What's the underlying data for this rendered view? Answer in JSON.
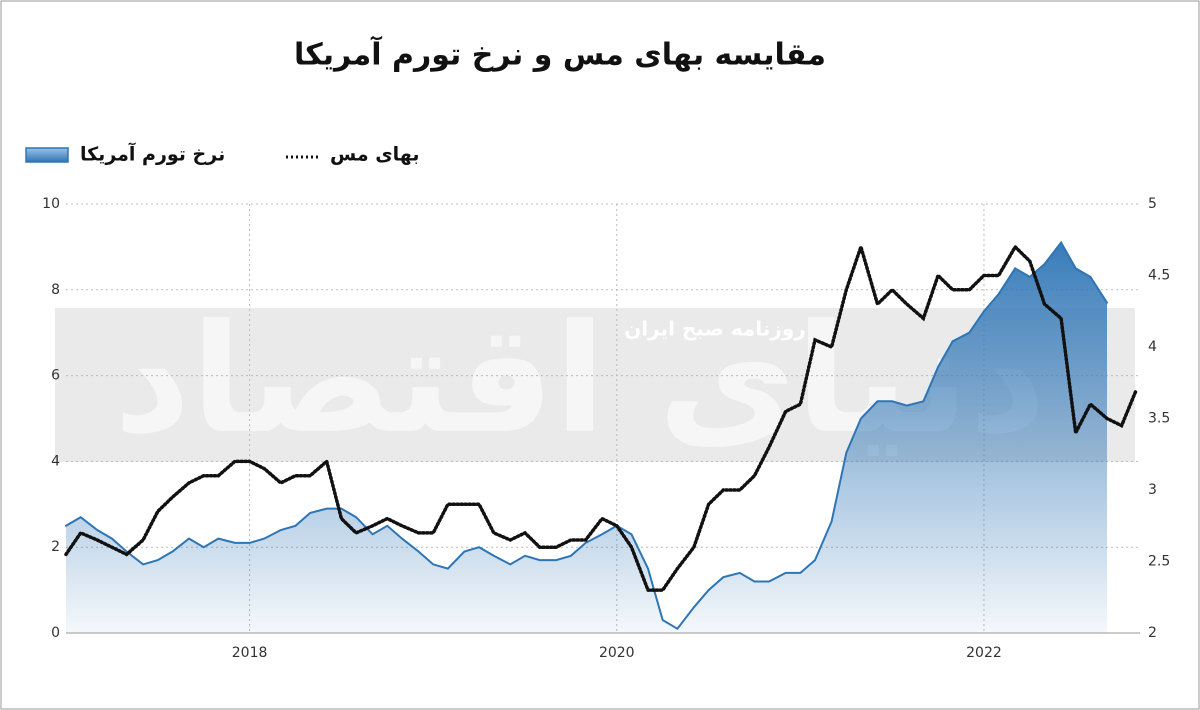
{
  "chart_data": {
    "type": "line",
    "title": "مقایسه بهای مس و نرخ تورم آمریکا",
    "watermark": "دنیای اقتصاد",
    "watermark_subtitle": "روزنامه صبح ایران",
    "xlim": [
      2017,
      2022.85
    ],
    "xticks": [
      2018,
      2020,
      2022
    ],
    "ylim": [
      0,
      10
    ],
    "yticks": [
      0,
      2,
      4,
      6,
      8,
      10
    ],
    "y2lim": [
      2,
      5
    ],
    "y2ticks": [
      2,
      2.5,
      3,
      3.5,
      4,
      4.5,
      5
    ],
    "grid": true,
    "series": [
      {
        "name": "نرخ تورم آمریکا",
        "color": "#2e75b6",
        "fill": "area",
        "x": [
          2017,
          2017.08,
          2017.17,
          2017.25,
          2017.33,
          2017.42,
          2017.5,
          2017.58,
          2017.67,
          2017.75,
          2017.83,
          2017.92,
          2018,
          2018.08,
          2018.17,
          2018.25,
          2018.33,
          2018.42,
          2018.5,
          2018.58,
          2018.67,
          2018.75,
          2018.83,
          2018.92,
          2019,
          2019.08,
          2019.17,
          2019.25,
          2019.33,
          2019.42,
          2019.5,
          2019.58,
          2019.67,
          2019.75,
          2019.83,
          2019.92,
          2020,
          2020.08,
          2020.17,
          2020.25,
          2020.33,
          2020.42,
          2020.5,
          2020.58,
          2020.67,
          2020.75,
          2020.83,
          2020.92,
          2021,
          2021.08,
          2021.17,
          2021.25,
          2021.33,
          2021.42,
          2021.5,
          2021.58,
          2021.67,
          2021.75,
          2021.83,
          2021.92,
          2022,
          2022.08,
          2022.17,
          2022.25,
          2022.33,
          2022.42,
          2022.5,
          2022.58,
          2022.67
        ],
        "values": [
          2.5,
          2.7,
          2.4,
          2.2,
          1.9,
          1.6,
          1.7,
          1.9,
          2.2,
          2.0,
          2.2,
          2.1,
          2.1,
          2.2,
          2.4,
          2.5,
          2.8,
          2.9,
          2.9,
          2.7,
          2.3,
          2.5,
          2.2,
          1.9,
          1.6,
          1.5,
          1.9,
          2.0,
          1.8,
          1.6,
          1.8,
          1.7,
          1.7,
          1.8,
          2.1,
          2.3,
          2.5,
          2.3,
          1.5,
          0.3,
          0.1,
          0.6,
          1.0,
          1.3,
          1.4,
          1.2,
          1.2,
          1.4,
          1.4,
          1.7,
          2.6,
          4.2,
          5.0,
          5.4,
          5.4,
          5.3,
          5.4,
          6.2,
          6.8,
          7.0,
          7.5,
          7.9,
          8.5,
          8.3,
          8.6,
          9.1,
          8.5,
          8.3,
          7.7
        ]
      },
      {
        "name": "بهای مس",
        "color": "#111111",
        "axis": "y2",
        "dash": "dotted",
        "x": [
          2017,
          2017.08,
          2017.17,
          2017.25,
          2017.33,
          2017.42,
          2017.5,
          2017.58,
          2017.67,
          2017.75,
          2017.83,
          2017.92,
          2018,
          2018.08,
          2018.17,
          2018.25,
          2018.33,
          2018.42,
          2018.5,
          2018.58,
          2018.67,
          2018.75,
          2018.83,
          2018.92,
          2019,
          2019.08,
          2019.17,
          2019.25,
          2019.33,
          2019.42,
          2019.5,
          2019.58,
          2019.67,
          2019.75,
          2019.83,
          2019.92,
          2020,
          2020.08,
          2020.17,
          2020.25,
          2020.33,
          2020.42,
          2020.5,
          2020.58,
          2020.67,
          2020.75,
          2020.83,
          2020.92,
          2021,
          2021.08,
          2021.17,
          2021.25,
          2021.33,
          2021.42,
          2021.5,
          2021.58,
          2021.67,
          2021.75,
          2021.83,
          2021.92,
          2022,
          2022.08,
          2022.17,
          2022.25,
          2022.33,
          2022.42,
          2022.5,
          2022.58,
          2022.67,
          2022.75,
          2022.83
        ],
        "values": [
          2.55,
          2.7,
          2.65,
          2.6,
          2.55,
          2.65,
          2.85,
          2.95,
          3.05,
          3.1,
          3.1,
          3.2,
          3.2,
          3.15,
          3.05,
          3.1,
          3.1,
          3.2,
          2.8,
          2.7,
          2.75,
          2.8,
          2.75,
          2.7,
          2.7,
          2.9,
          2.9,
          2.9,
          2.7,
          2.65,
          2.7,
          2.6,
          2.6,
          2.65,
          2.65,
          2.8,
          2.75,
          2.6,
          2.3,
          2.3,
          2.45,
          2.6,
          2.9,
          3.0,
          3.0,
          3.1,
          3.3,
          3.55,
          3.6,
          4.05,
          4.0,
          4.4,
          4.7,
          4.3,
          4.4,
          4.3,
          4.2,
          4.5,
          4.4,
          4.4,
          4.5,
          4.5,
          4.7,
          4.6,
          4.3,
          4.2,
          3.4,
          3.6,
          3.5,
          3.45,
          3.7
        ]
      }
    ]
  }
}
